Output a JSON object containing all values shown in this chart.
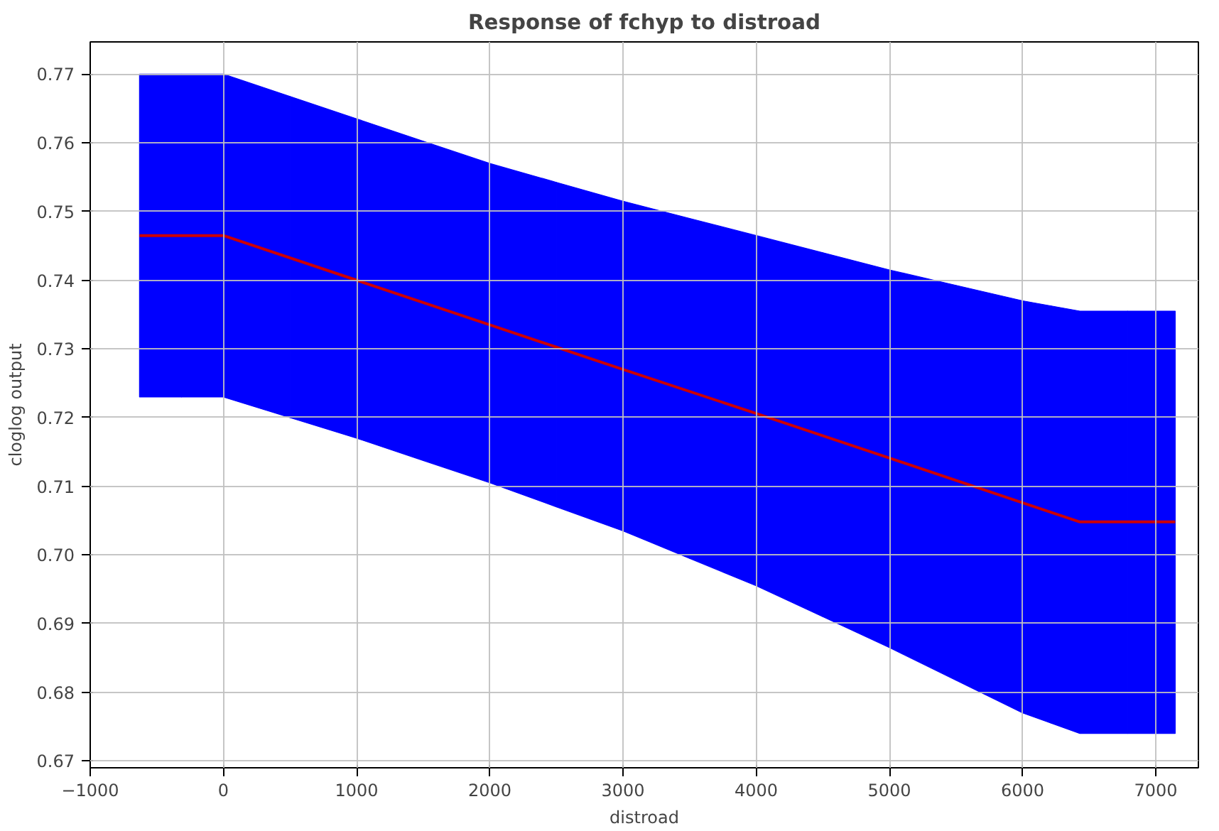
{
  "chart_data": {
    "type": "line",
    "title": "Response of fchyp to distroad",
    "xlabel": "distroad",
    "ylabel": "cloglog output",
    "series": [
      {
        "color": "#cc0000",
        "colors": [
          "#0000ff",
          "#0000ff",
          "#0000ff",
          "#0000ff",
          "#0000ff",
          "#0000ff",
          "#0000ff",
          "#0000ff",
          "#0000ff",
          "#0000ff"
        ],
        "x": [
          -630,
          0,
          1000,
          2000,
          3000,
          4000,
          5000,
          6000,
          6430,
          7146
        ],
        "values": [
          0.7465,
          0.7465,
          0.74,
          0.7335,
          0.727,
          0.7206,
          0.7141,
          0.7076,
          0.7048,
          0.7048
        ],
        "lower": [
          0.723,
          0.723,
          0.717,
          0.7105,
          0.7035,
          0.6955,
          0.6865,
          0.677,
          0.674,
          0.674
        ],
        "upper": [
          0.77,
          0.77,
          0.7635,
          0.757,
          0.7515,
          0.7465,
          0.7415,
          0.737,
          0.7355,
          0.7355
        ]
      }
    ],
    "xlim": [
      -1000,
      7320
    ],
    "ylim": [
      0.669,
      0.7747
    ],
    "xticks": [
      -1000,
      0,
      1000,
      2000,
      3000,
      4000,
      5000,
      6000,
      7000
    ],
    "yticks": [
      0.67,
      0.68,
      0.69,
      {
        "value": 0.7,
        "label": "0.70"
      },
      0.71,
      0.72,
      0.73,
      0.74,
      0.75,
      0.76,
      0.77
    ],
    "grid": true,
    "legend": false,
    "marker": "none",
    "line_style": "solid"
  }
}
